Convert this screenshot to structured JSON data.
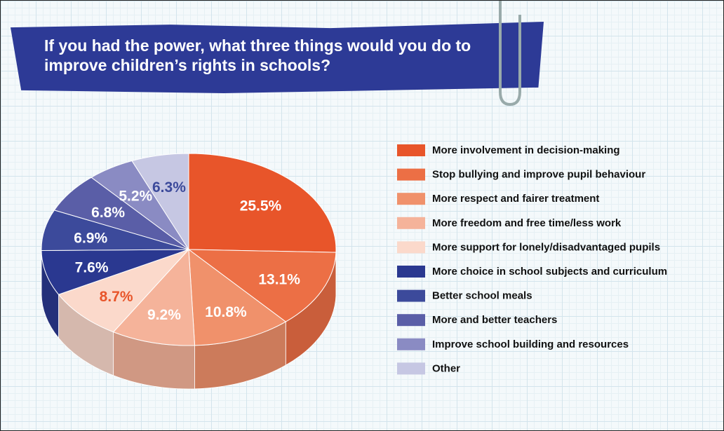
{
  "chart_data": {
    "type": "pie",
    "title": "If you had the power, what three things would you do to improve children’s rights in schools?",
    "categories": [
      "More involvement in decision-making",
      "Stop bullying and improve pupil behaviour",
      "More respect and fairer treatment",
      "More freedom and free time/less work",
      "More support for lonely/disadvantaged pupils",
      "More choice in school subjects and curriculum",
      "Better school meals",
      "More and better teachers",
      "Improve school building and resources",
      "Other"
    ],
    "values": [
      25.5,
      13.1,
      10.8,
      9.2,
      8.7,
      7.6,
      6.9,
      6.8,
      5.2,
      6.3
    ],
    "value_labels": [
      "25.5%",
      "13.1%",
      "10.8%",
      "9.2%",
      "8.7%",
      "7.6%",
      "6.9%",
      "6.8%",
      "5.2%",
      "6.3%"
    ],
    "colors": [
      "#e8552a",
      "#ec6f45",
      "#f0916b",
      "#f5b39a",
      "#fbd9cb",
      "#2a3890",
      "#3c4a9b",
      "#5a5ea7",
      "#8a8bc3",
      "#c6c7e3"
    ],
    "label_colors": [
      "#ffffff",
      "#ffffff",
      "#ffffff",
      "#ffffff",
      "#e8552a",
      "#ffffff",
      "#ffffff",
      "#ffffff",
      "#ffffff",
      "#3c4a9b"
    ],
    "legend": "right"
  }
}
